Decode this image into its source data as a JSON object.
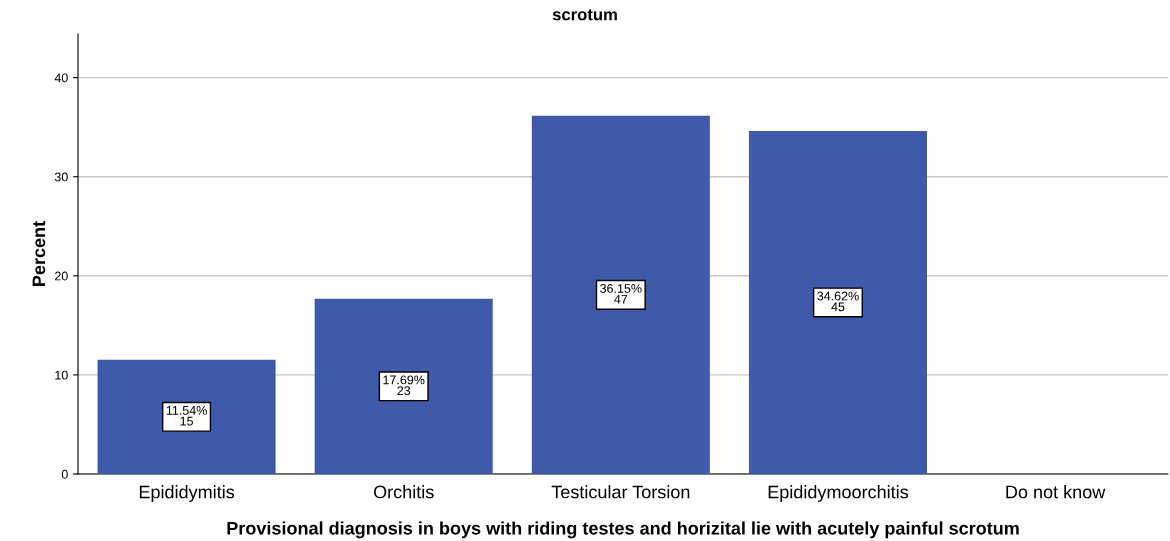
{
  "chart_data": {
    "type": "bar",
    "title": "scrotum",
    "xlabel": "Provisional diagnosis in boys with riding testes and horizital lie with acutely painful scrotum",
    "ylabel": "Percent",
    "categories": [
      "Epididymitis",
      "Orchitis",
      "Testicular Torsion",
      "Epididymoorchitis",
      "Do not know"
    ],
    "values": [
      11.54,
      17.69,
      36.15,
      34.62,
      0
    ],
    "value_labels": [
      "11.54%\n15",
      "17.69%\n23",
      "36.15%\n47",
      "34.62%\n45",
      null
    ],
    "color": "#3f5aa8",
    "ylim": [
      0,
      44.4
    ],
    "yticks": [
      0,
      10,
      20,
      30,
      40
    ],
    "grid": "y"
  }
}
